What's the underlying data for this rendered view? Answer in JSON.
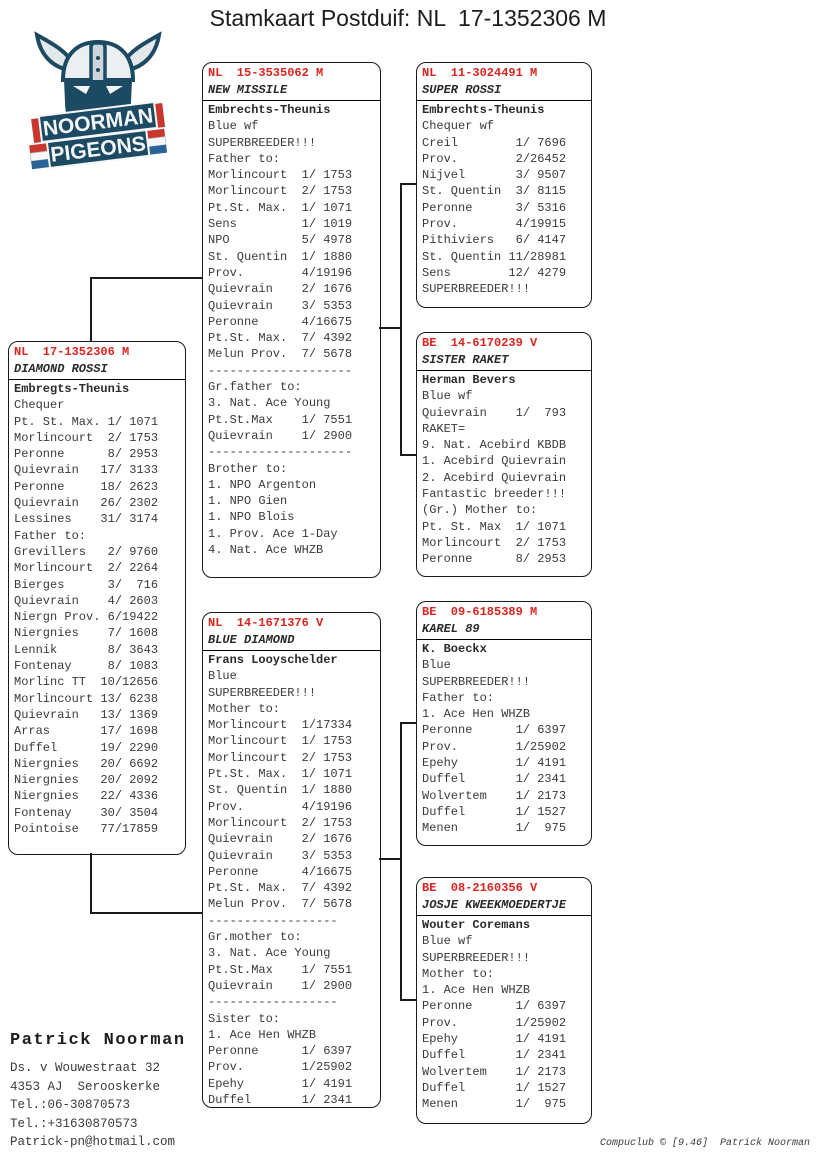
{
  "title": "Stamkaart Postduif: NL  17-1352306 M",
  "logo": {
    "line1": "NOORMAN",
    "line2": "PIGEONS"
  },
  "colors": {
    "ring_red": "#dc241f",
    "navy": "#1d4a63",
    "steel": "#e3e8eb",
    "flag_red": "#c8372d",
    "flag_white": "#f4f6f7",
    "flag_blue": "#2a6496"
  },
  "boxes": {
    "subject": {
      "ring": "NL  17-1352306 M",
      "name": "DIAMOND ROSSI",
      "lines": [
        "Embregts-Theunis",
        "Chequer",
        "Pt. St. Max. 1/ 1071",
        "Morlincourt  2/ 1753",
        "Peronne      8/ 2953",
        "Quievrain   17/ 3133",
        "Peronne     18/ 2623",
        "Quievrain   26/ 2302",
        "Lessines    31/ 3174",
        "Father to:",
        "Grevillers   2/ 9760",
        "Morlincourt  2/ 2264",
        "Bierges      3/  716",
        "Quievrain    4/ 2603",
        "Niergn Prov. 6/19422",
        "Niergnies    7/ 1608",
        "Lennik       8/ 3643",
        "Fontenay     8/ 1083",
        "Morlinc TT  10/12656",
        "Morlincourt 13/ 6238",
        "Quievrain   13/ 1369",
        "Arras       17/ 1698",
        "Duffel      19/ 2290",
        "Niergnies   20/ 6692",
        "Niergnies   20/ 2092",
        "Niergnies   22/ 4336",
        "Fontenay    30/ 3504",
        "Pointoise   77/17859"
      ]
    },
    "sire": {
      "ring": "NL  15-3535062 M",
      "name": "NEW MISSILE",
      "lines": [
        "Embrechts-Theunis",
        "Blue wf",
        "SUPERBREEDER!!!",
        "Father to:",
        "Morlincourt  1/ 1753",
        "Morlincourt  2/ 1753",
        "Pt.St. Max.  1/ 1071",
        "Sens         1/ 1019",
        "NPO          5/ 4978",
        "St. Quentin  1/ 1880",
        "Prov.        4/19196",
        "Quievrain    2/ 1676",
        "Quievrain    3/ 5353",
        "Peronne      4/16675",
        "Pt.St. Max.  7/ 4392",
        "Melun Prov.  7/ 5678",
        "--------------------",
        "Gr.father to:",
        "3. Nat. Ace Young",
        "Pt.St.Max    1/ 7551",
        "Quievrain    1/ 2900",
        "--------------------",
        "Brother to:",
        "1. NPO Argenton",
        "1. NPO Gien",
        "1. NPO Blois",
        "1. Prov. Ace 1-Day",
        "4. Nat. Ace WHZB"
      ]
    },
    "dam": {
      "ring": "NL  14-1671376 V",
      "name": "BLUE DIAMOND",
      "lines": [
        "Frans Looyschelder",
        "Blue",
        "SUPERBREEDER!!!",
        "Mother to:",
        "Morlincourt  1/17334",
        "Morlincourt  1/ 1753",
        "Morlincourt  2/ 1753",
        "Pt.St. Max.  1/ 1071",
        "St. Quentin  1/ 1880",
        "Prov.        4/19196",
        "Morlincourt  2/ 1753",
        "Quievrain    2/ 1676",
        "Quievrain    3/ 5353",
        "Peronne      4/16675",
        "Pt.St. Max.  7/ 4392",
        "Melun Prov.  7/ 5678",
        "------------------",
        "Gr.mother to:",
        "3. Nat. Ace Young",
        "Pt.St.Max    1/ 7551",
        "Quievrain    1/ 2900",
        "------------------",
        "Sister to:",
        "1. Ace Hen WHZB",
        "Peronne      1/ 6397",
        "Prov.        1/25902",
        "Epehy        1/ 4191",
        "Duffel       1/ 2341"
      ]
    },
    "sire_sire": {
      "ring": "NL  11-3024491 M",
      "name": "SUPER ROSSI",
      "lines": [
        "Embrechts-Theunis",
        "Chequer wf",
        "Creil        1/ 7696",
        "Prov.        2/26452",
        "Nijvel       3/ 9507",
        "St. Quentin  3/ 8115",
        "Peronne      3/ 5316",
        "Prov.        4/19915",
        "Pithiviers   6/ 4147",
        "St. Quentin 11/28981",
        "Sens        12/ 4279",
        "SUPERBREEDER!!!"
      ]
    },
    "sire_dam": {
      "ring": "BE  14-6170239 V",
      "name": "SISTER RAKET",
      "lines": [
        "Herman Bevers",
        "Blue wf",
        "Quievrain    1/  793",
        "RAKET=",
        "9. Nat. Acebird KBDB",
        "1. Acebird Quievrain",
        "2. Acebird Quievrain",
        "Fantastic breeder!!!",
        "(Gr.) Mother to:",
        "Pt. St. Max  1/ 1071",
        "Morlincourt  2/ 1753",
        "Peronne      8/ 2953"
      ]
    },
    "dam_sire": {
      "ring": "BE  09-6185389 M",
      "name": "KAREL 89",
      "lines": [
        "K. Boeckx",
        "Blue",
        "SUPERBREEDER!!!",
        "Father to:",
        "1. Ace Hen WHZB",
        "Peronne      1/ 6397",
        "Prov.        1/25902",
        "Epehy        1/ 4191",
        "Duffel       1/ 2341",
        "Wolvertem    1/ 2173",
        "Duffel       1/ 1527",
        "Menen        1/  975"
      ]
    },
    "dam_dam": {
      "ring": "BE  08-2160356 V",
      "name": "JOSJE KWEEKMOEDERTJE",
      "lines": [
        "Wouter Coremans",
        "Blue wf",
        "SUPERBREEDER!!!",
        "Mother to:",
        "1. Ace Hen WHZB",
        "Peronne      1/ 6397",
        "Prov.        1/25902",
        "Epehy        1/ 4191",
        "Duffel       1/ 2341",
        "Wolvertem    1/ 2173",
        "Duffel       1/ 1527",
        "Menen        1/  975"
      ]
    }
  },
  "contact": {
    "name": "Patrick Noorman",
    "lines": [
      "Ds. v Wouwestraat 32",
      "4353 AJ  Serooskerke",
      "Tel.:06-30870573",
      "Tel.:+31630870573",
      "Patrick-pn@hotmail.com"
    ]
  },
  "footer": "Compuclub © [9.46]  Patrick Noorman"
}
